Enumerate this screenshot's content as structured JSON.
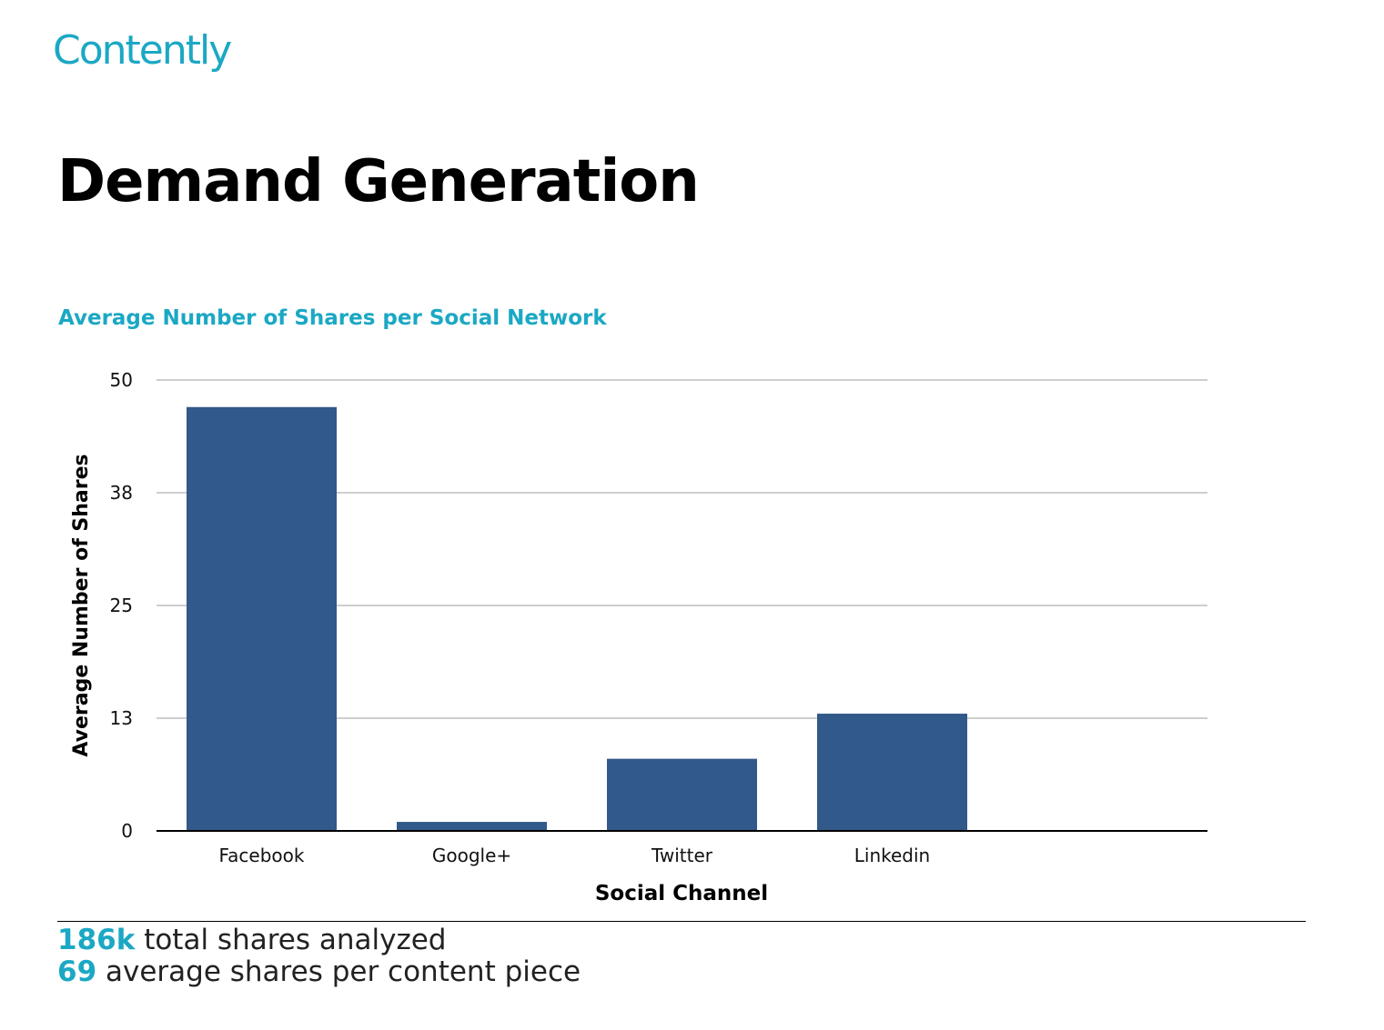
{
  "brand": {
    "logo_text": "Contently",
    "color": "#1ba8c4"
  },
  "page_title": "Demand Generation",
  "chart_data": {
    "type": "bar",
    "title": "Average Number of Shares per Social Network",
    "categories": [
      "Facebook",
      "Google+",
      "Twitter",
      "Linkedin"
    ],
    "values": [
      47,
      1,
      8,
      13
    ],
    "xlabel": "Social Channel",
    "ylabel": "Average Number of Shares",
    "ylim": [
      0,
      50
    ],
    "yticks": [
      0,
      12.5,
      25,
      37.5,
      50
    ],
    "ytick_labels": [
      "0",
      "13",
      "25",
      "38",
      "50"
    ],
    "grid": true,
    "bar_color": "#315989"
  },
  "stats": [
    {
      "value": "186k",
      "label": "total shares analyzed"
    },
    {
      "value": "69",
      "label": "average shares per content piece"
    }
  ]
}
